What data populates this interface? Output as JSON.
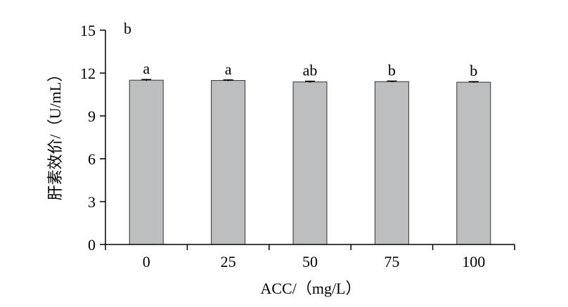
{
  "chart_data": {
    "type": "bar",
    "panel_label": "b",
    "xlabel": "ACC/（mg/L）",
    "ylabel": "肝素效价/（U/mL）",
    "categories": [
      "0",
      "25",
      "50",
      "75",
      "100"
    ],
    "values": [
      11.5,
      11.48,
      11.38,
      11.4,
      11.36
    ],
    "errors": [
      0.05,
      0.04,
      0.05,
      0.04,
      0.04
    ],
    "significance": [
      "a",
      "a",
      "ab",
      "b",
      "b"
    ],
    "ylim": [
      0,
      15
    ],
    "yticks": [
      0,
      3,
      6,
      9,
      12,
      15
    ],
    "grid": false,
    "colors": {
      "bar_fill": "#bdbebf",
      "bar_stroke": "#333333",
      "axis": "#000000"
    }
  }
}
